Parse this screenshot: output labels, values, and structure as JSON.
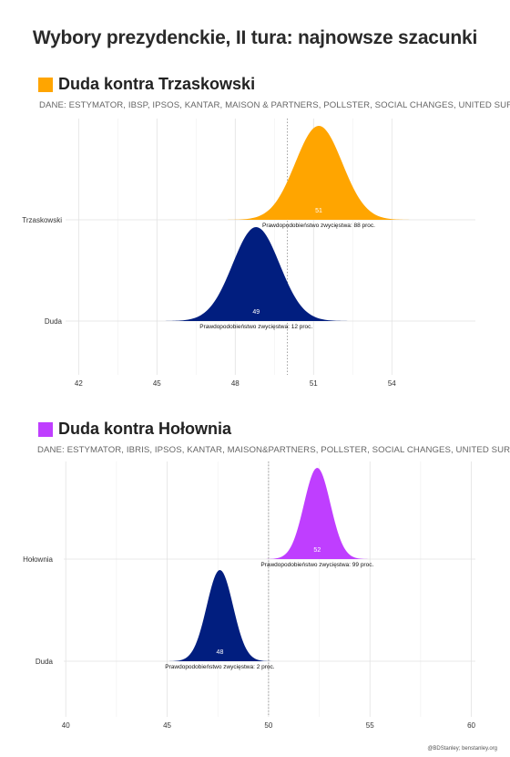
{
  "title": "Wybory prezydenckie, II tura: najnowsze szacunki",
  "credit": "@BDStanley; benstanley.org",
  "colors": {
    "orange": "#FFA500",
    "navy": "#011E7F",
    "purple": "#BF3EFF",
    "grid": "#e2e2e2"
  },
  "chart_data": [
    {
      "type": "area",
      "title": "Duda kontra Trzaskowski",
      "subtitle": "DANE: ESTYMATOR, IBSP, IPSOS, KANTAR, MAISON & PARTNERS, POLLSTER, SOCIAL CHANGES, UNITED SURVEY",
      "xlim": [
        41.5,
        57.2
      ],
      "xticks": [
        "42",
        "45",
        "48",
        "51",
        "54"
      ],
      "xtick_values": [
        42,
        45,
        48,
        51,
        54
      ],
      "threshold": 50,
      "grid": true,
      "series": [
        {
          "name": "Trzaskowski",
          "color": "#FFA500",
          "mean": 51.2,
          "sd": 0.9,
          "range": [
            46.5,
            56.5
          ],
          "mean_label": "51",
          "probability_label": "Prawdopodobieństwo zwycięstwa: 88 proc."
        },
        {
          "name": "Duda",
          "color": "#011E7F",
          "mean": 48.8,
          "sd": 0.9,
          "range": [
            43.5,
            53.5
          ],
          "mean_label": "49",
          "probability_label": "Prawdopodobieństwo zwycięstwa: 12 proc."
        }
      ]
    },
    {
      "type": "area",
      "title": "Duda kontra Hołownia",
      "subtitle": "DANE: ESTYMATOR, IBRIS, IPSOS, KANTAR, MAISON&PARTNERS, POLLSTER, SOCIAL CHANGES, UNITED SURVEY",
      "xlim": [
        39.9,
        60.2
      ],
      "xticks": [
        "40",
        "45",
        "50",
        "55",
        "60"
      ],
      "xtick_values": [
        40,
        45,
        50,
        55,
        60
      ],
      "threshold": 50,
      "grid": true,
      "series": [
        {
          "name": "Hołownia",
          "color": "#BF3EFF",
          "mean": 52.4,
          "sd": 0.65,
          "range": [
            47.5,
            58
          ],
          "mean_label": "52",
          "probability_label": "Prawdopodobieństwo zwycięstwa: 99 proc."
        },
        {
          "name": "Duda",
          "color": "#011E7F",
          "mean": 47.6,
          "sd": 0.65,
          "range": [
            42,
            52.5
          ],
          "mean_label": "48",
          "probability_label": "Prawdopodobieństwo zwycięstwa: 2 proc."
        }
      ]
    }
  ]
}
